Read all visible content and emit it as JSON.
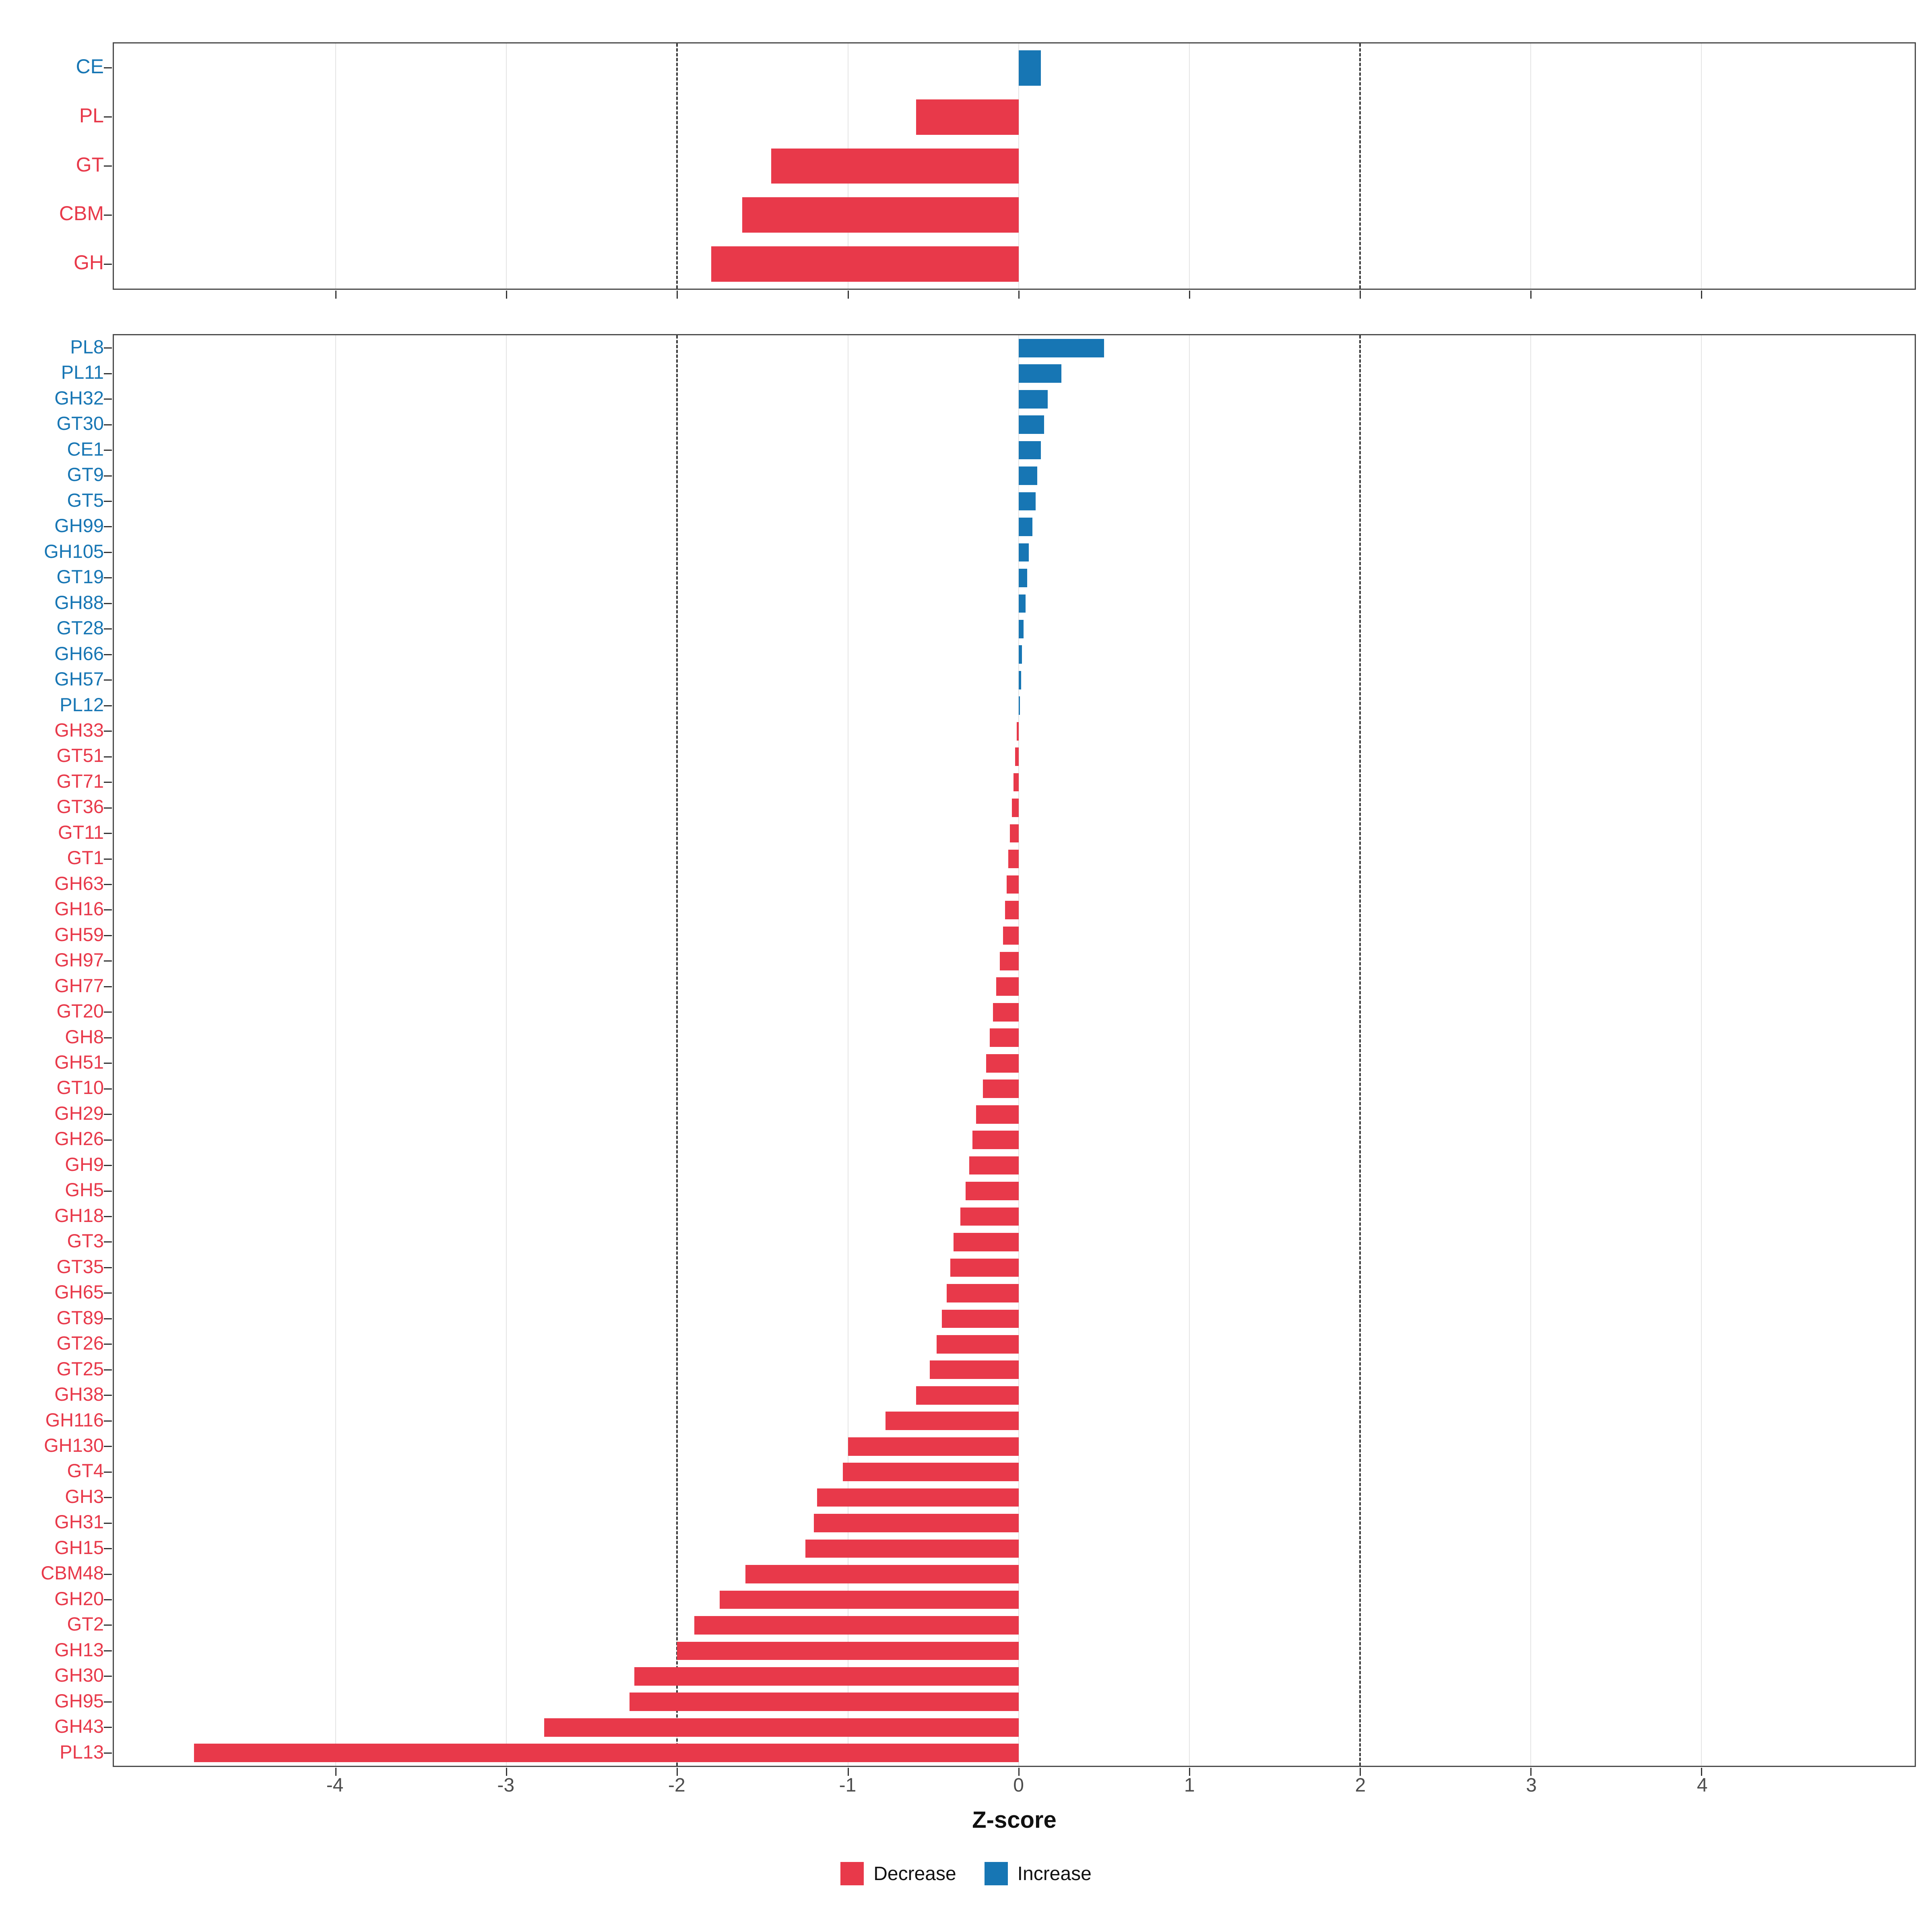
{
  "figure": {
    "xlabel": "Z-score",
    "axis": {
      "xmin": -5.3,
      "xmax": 5.25,
      "ticks": [
        -4,
        -3,
        -2,
        -1,
        0,
        1,
        2,
        3,
        4
      ],
      "dashed_lines": [
        -2,
        2
      ],
      "grid": true
    },
    "colors": {
      "decrease": "#E8394A",
      "increase": "#1776B4",
      "gridline": "#E4E4E4",
      "panel_border": "#4A4A4A",
      "tick_text": "#4D4D4D",
      "dashed_line": "#3A3A3A"
    },
    "legend": [
      {
        "label": "Decrease",
        "color_key": "decrease"
      },
      {
        "label": "Increase",
        "color_key": "increase"
      }
    ]
  },
  "chart_data": [
    {
      "type": "bar",
      "orientation": "horizontal",
      "panel": "top",
      "title": "",
      "xlabel": "Z-score",
      "xlim": [
        -5.3,
        5.25
      ],
      "categories": [
        "CE",
        "PL",
        "GT",
        "CBM",
        "GH"
      ],
      "values": [
        0.13,
        -0.6,
        -1.45,
        -1.62,
        -1.8
      ]
    },
    {
      "type": "bar",
      "orientation": "horizontal",
      "panel": "bottom",
      "title": "",
      "xlabel": "Z-score",
      "xlim": [
        -5.3,
        5.25
      ],
      "categories": [
        "PL8",
        "PL11",
        "GH32",
        "GT30",
        "CE1",
        "GT9",
        "GT5",
        "GH99",
        "GH105",
        "GT19",
        "GH88",
        "GT28",
        "GH66",
        "GH57",
        "PL12",
        "GH33",
        "GT51",
        "GT71",
        "GT36",
        "GT11",
        "GT1",
        "GH63",
        "GH16",
        "GH59",
        "GH97",
        "GH77",
        "GT20",
        "GH8",
        "GH51",
        "GT10",
        "GH29",
        "GH26",
        "GH9",
        "GH5",
        "GH18",
        "GT3",
        "GT35",
        "GH65",
        "GT89",
        "GT26",
        "GT25",
        "GH38",
        "GH116",
        "GH130",
        "GT4",
        "GH3",
        "GH31",
        "GH15",
        "CBM48",
        "GH20",
        "GT2",
        "GH13",
        "GH30",
        "GH95",
        "GH43",
        "PL13"
      ],
      "values": [
        0.5,
        0.25,
        0.17,
        0.15,
        0.13,
        0.11,
        0.1,
        0.08,
        0.06,
        0.05,
        0.04,
        0.03,
        0.02,
        0.015,
        0.008,
        -0.01,
        -0.02,
        -0.03,
        -0.04,
        -0.05,
        -0.06,
        -0.07,
        -0.08,
        -0.09,
        -0.11,
        -0.13,
        -0.15,
        -0.17,
        -0.19,
        -0.21,
        -0.25,
        -0.27,
        -0.29,
        -0.31,
        -0.34,
        -0.38,
        -0.4,
        -0.42,
        -0.45,
        -0.48,
        -0.52,
        -0.6,
        -0.78,
        -1.0,
        -1.03,
        -1.18,
        -1.2,
        -1.25,
        -1.6,
        -1.75,
        -1.9,
        -2.0,
        -2.25,
        -2.28,
        -2.78,
        -4.83
      ]
    }
  ]
}
